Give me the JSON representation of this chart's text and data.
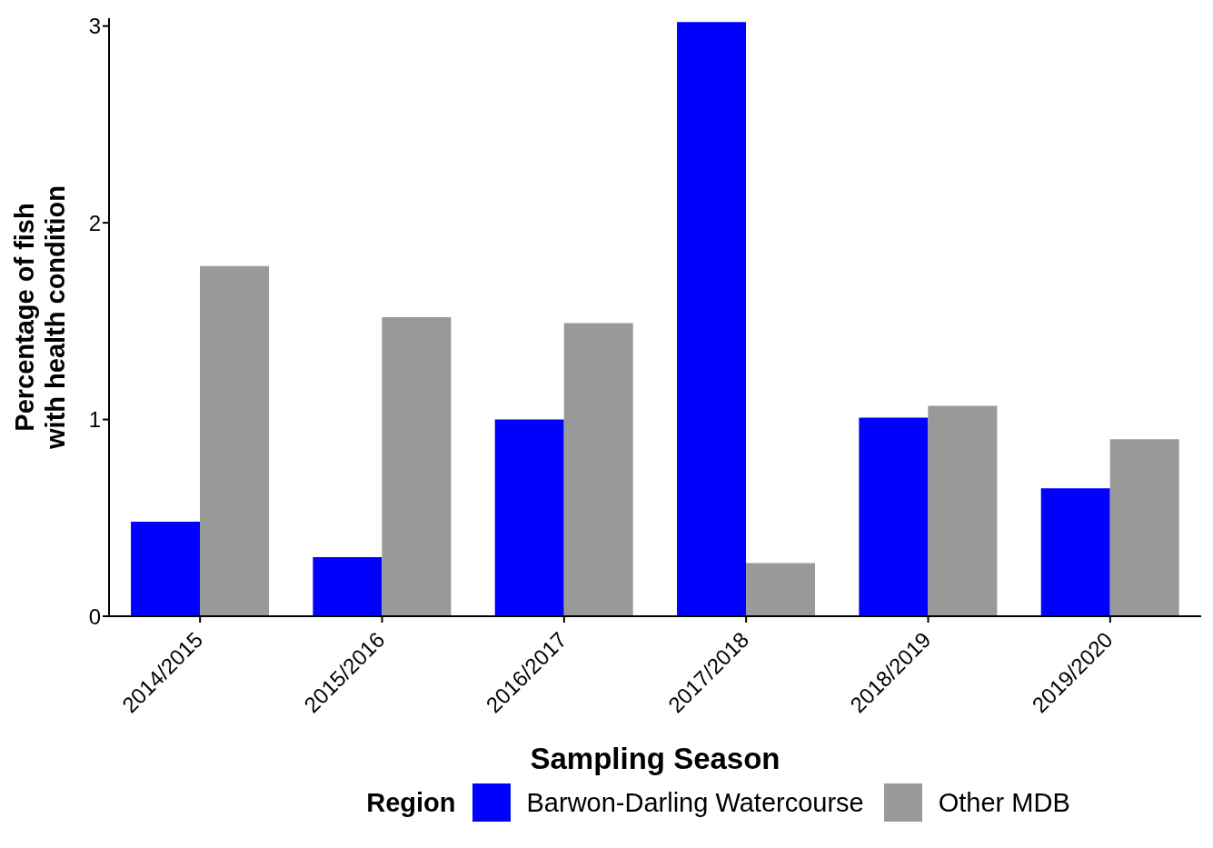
{
  "chart_data": {
    "type": "bar",
    "xlabel": "Sampling Season",
    "ylabel": "Percentage of fish\nwith health condition",
    "legend_title": "Region",
    "categories": [
      "2014/2015",
      "2015/2016",
      "2016/2017",
      "2017/2018",
      "2018/2019",
      "2019/2020"
    ],
    "series": [
      {
        "name": "Barwon-Darling Watercourse",
        "color": "#0000ff",
        "values": [
          0.48,
          0.3,
          1.0,
          3.02,
          1.01,
          0.65
        ]
      },
      {
        "name": "Other MDB",
        "color": "#999999",
        "values": [
          1.78,
          1.52,
          1.49,
          0.27,
          1.07,
          0.9
        ]
      }
    ],
    "ylim": [
      0,
      3.04
    ],
    "yticks": [
      0,
      1,
      2,
      3
    ],
    "grid": false,
    "legend": "bottom"
  }
}
